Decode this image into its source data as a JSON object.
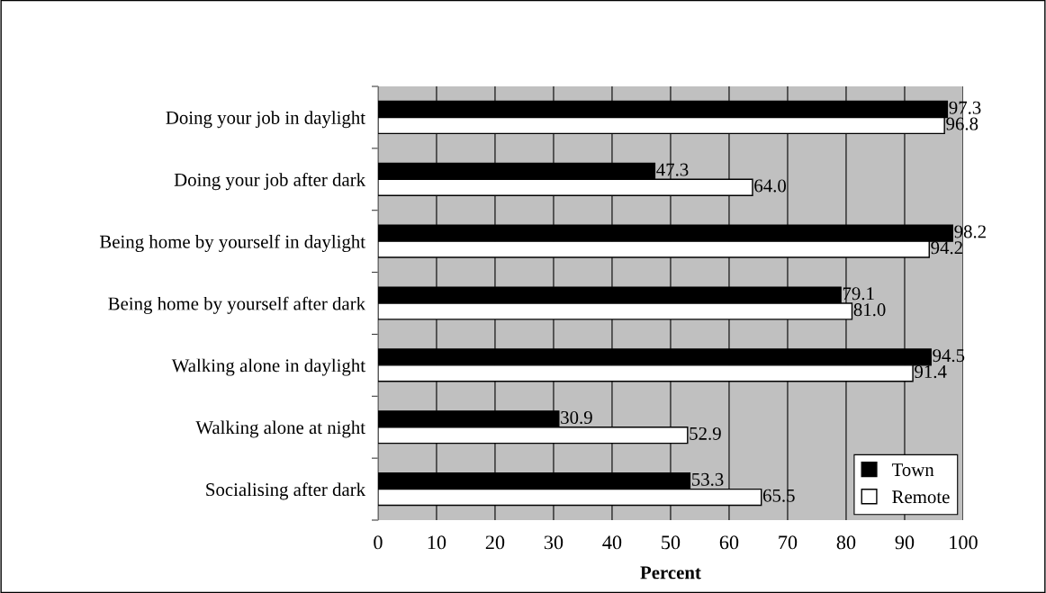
{
  "chart_data": {
    "type": "bar",
    "orientation": "horizontal",
    "xlabel": "Percent",
    "categories": [
      "Doing your job in daylight",
      "Doing your job after dark",
      "Being home by yourself in daylight",
      "Being home by yourself after dark",
      "Walking alone in daylight",
      "Walking alone at night",
      "Socialising after dark"
    ],
    "series": [
      {
        "name": "Town",
        "color": "#000000",
        "values": [
          97.3,
          47.3,
          98.2,
          79.1,
          94.5,
          30.9,
          53.3
        ]
      },
      {
        "name": "Remote",
        "color": "#ffffff",
        "values": [
          96.8,
          64.0,
          94.2,
          81.0,
          91.4,
          52.9,
          65.5
        ]
      }
    ],
    "xlim": [
      0,
      100
    ],
    "xticks": [
      0,
      10,
      20,
      30,
      40,
      50,
      60,
      70,
      80,
      90,
      100
    ],
    "grid": "x",
    "legend": "bottom right",
    "value_labels": [
      [
        "97.3",
        "47.3",
        "98.2",
        "79.1",
        "94.5",
        "30.9",
        "53.3"
      ],
      [
        "96.8",
        "64.0",
        "94.2",
        "81.0",
        "91.4",
        "52.9",
        "65.5"
      ]
    ]
  }
}
